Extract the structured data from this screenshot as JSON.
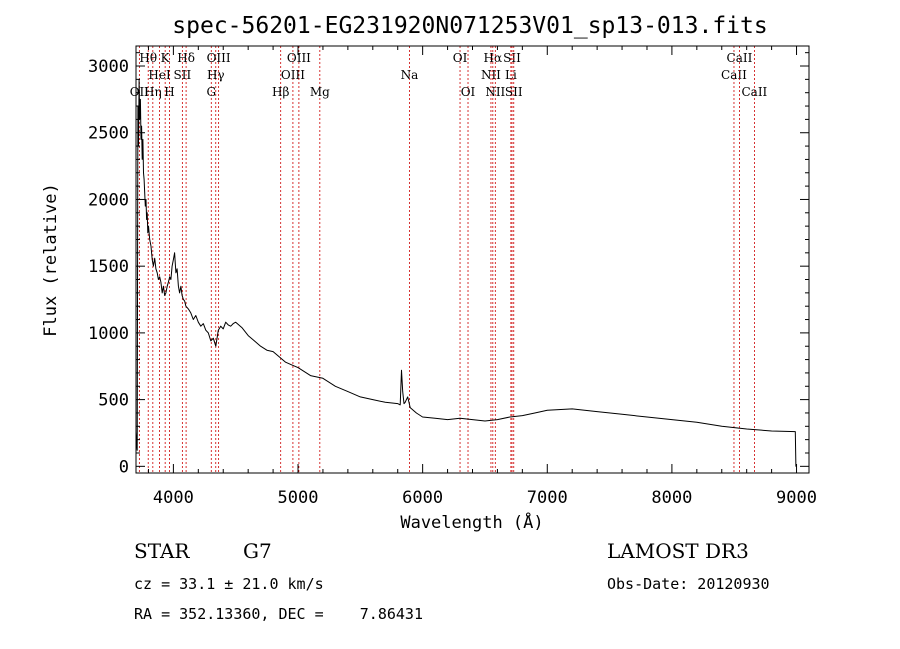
{
  "chart_data": {
    "type": "line",
    "title": "spec-56201-EG231920N071253V01_sp13-013.fits",
    "xlabel": "Wavelength (Å)",
    "ylabel": "Flux (relative)",
    "xlim": [
      3700,
      9100
    ],
    "ylim": [
      -50,
      3150
    ],
    "xticks": [
      4000,
      5000,
      6000,
      7000,
      8000,
      9000
    ],
    "yticks": [
      0,
      500,
      1000,
      1500,
      2000,
      2500,
      3000
    ],
    "series": [
      {
        "name": "flux",
        "x": [
          3700,
          3705,
          3710,
          3715,
          3720,
          3725,
          3730,
          3735,
          3740,
          3745,
          3750,
          3755,
          3760,
          3765,
          3770,
          3775,
          3780,
          3785,
          3790,
          3795,
          3800,
          3810,
          3820,
          3830,
          3840,
          3850,
          3860,
          3870,
          3880,
          3890,
          3900,
          3910,
          3920,
          3930,
          3940,
          3950,
          3960,
          3970,
          3980,
          3990,
          4000,
          4010,
          4020,
          4030,
          4040,
          4050,
          4060,
          4070,
          4080,
          4090,
          4100,
          4120,
          4140,
          4160,
          4180,
          4200,
          4220,
          4240,
          4260,
          4280,
          4300,
          4320,
          4340,
          4360,
          4380,
          4400,
          4420,
          4440,
          4460,
          4480,
          4500,
          4550,
          4600,
          4650,
          4700,
          4750,
          4800,
          4850,
          4900,
          4950,
          5000,
          5100,
          5200,
          5300,
          5400,
          5500,
          5600,
          5700,
          5800,
          5820,
          5830,
          5840,
          5850,
          5860,
          5870,
          5880,
          5900,
          5950,
          6000,
          6100,
          6200,
          6300,
          6400,
          6500,
          6600,
          6700,
          6800,
          6900,
          7000,
          7200,
          7400,
          7600,
          7800,
          8000,
          8200,
          8400,
          8600,
          8800,
          8990,
          8995,
          9000
        ],
        "y": [
          260,
          180,
          120,
          2700,
          2400,
          2900,
          2600,
          2750,
          2450,
          2550,
          2300,
          2450,
          2200,
          2150,
          2050,
          1950,
          2000,
          1850,
          1900,
          1750,
          1800,
          1700,
          1650,
          1550,
          1500,
          1560,
          1480,
          1450,
          1400,
          1420,
          1380,
          1300,
          1350,
          1280,
          1300,
          1350,
          1380,
          1420,
          1400,
          1500,
          1550,
          1600,
          1450,
          1480,
          1350,
          1300,
          1350,
          1280,
          1250,
          1240,
          1200,
          1180,
          1150,
          1100,
          1130,
          1080,
          1050,
          1070,
          1020,
          1000,
          940,
          960,
          900,
          1020,
          1050,
          1030,
          1080,
          1060,
          1050,
          1070,
          1080,
          1040,
          980,
          940,
          900,
          870,
          860,
          820,
          780,
          760,
          740,
          680,
          660,
          600,
          560,
          520,
          500,
          480,
          470,
          460,
          720,
          560,
          470,
          480,
          500,
          520,
          440,
          400,
          370,
          360,
          350,
          360,
          350,
          340,
          350,
          370,
          380,
          400,
          420,
          430,
          410,
          390,
          370,
          350,
          330,
          300,
          280,
          265,
          260,
          0,
          0
        ]
      }
    ],
    "emission_lines": [
      {
        "label": "OII",
        "wavelength": 3727,
        "row": 2
      },
      {
        "label": "Hθ",
        "wavelength": 3798,
        "row": 0
      },
      {
        "label": "Hη",
        "wavelength": 3835,
        "row": 2
      },
      {
        "label": "HeI",
        "wavelength": 3889,
        "row": 1
      },
      {
        "label": "K",
        "wavelength": 3934,
        "row": 0
      },
      {
        "label": "H",
        "wavelength": 3969,
        "row": 2
      },
      {
        "label": "SII",
        "wavelength": 4072,
        "row": 1
      },
      {
        "label": "Hδ",
        "wavelength": 4102,
        "row": 0
      },
      {
        "label": "G",
        "wavelength": 4304,
        "row": 2
      },
      {
        "label": "Hγ",
        "wavelength": 4340,
        "row": 1
      },
      {
        "label": "OIII",
        "wavelength": 4363,
        "row": 0
      },
      {
        "label": "Hβ",
        "wavelength": 4861,
        "row": 2
      },
      {
        "label": "OIII",
        "wavelength": 4959,
        "row": 1
      },
      {
        "label": "OIII",
        "wavelength": 5007,
        "row": 0
      },
      {
        "label": "Mg",
        "wavelength": 5175,
        "row": 2
      },
      {
        "label": "Na",
        "wavelength": 5894,
        "row": 1
      },
      {
        "label": "OI",
        "wavelength": 6300,
        "row": 0
      },
      {
        "label": "OI",
        "wavelength": 6364,
        "row": 2
      },
      {
        "label": "NII",
        "wavelength": 6548,
        "row": 1
      },
      {
        "label": "Hα",
        "wavelength": 6563,
        "row": 0
      },
      {
        "label": "NII",
        "wavelength": 6583,
        "row": 2
      },
      {
        "label": "Li",
        "wavelength": 6708,
        "row": 1
      },
      {
        "label": "SII",
        "wavelength": 6717,
        "row": 0
      },
      {
        "label": "SII",
        "wavelength": 6731,
        "row": 2
      },
      {
        "label": "CaII",
        "wavelength": 8498,
        "row": 1
      },
      {
        "label": "CaII",
        "wavelength": 8542,
        "row": 0
      },
      {
        "label": "CaII",
        "wavelength": 8662,
        "row": 2
      }
    ]
  },
  "info": {
    "object_class": "STAR",
    "subclass": "G7",
    "survey": "LAMOST DR3",
    "redshift": "cz = 33.1 ± 21.0 km/s",
    "obs_date": "Obs-Date: 20120930",
    "coords": "RA = 352.13360, DEC =    7.86431"
  },
  "colors": {
    "axis": "#000000",
    "line_marker": "#cc0000",
    "spectrum": "#000000"
  }
}
